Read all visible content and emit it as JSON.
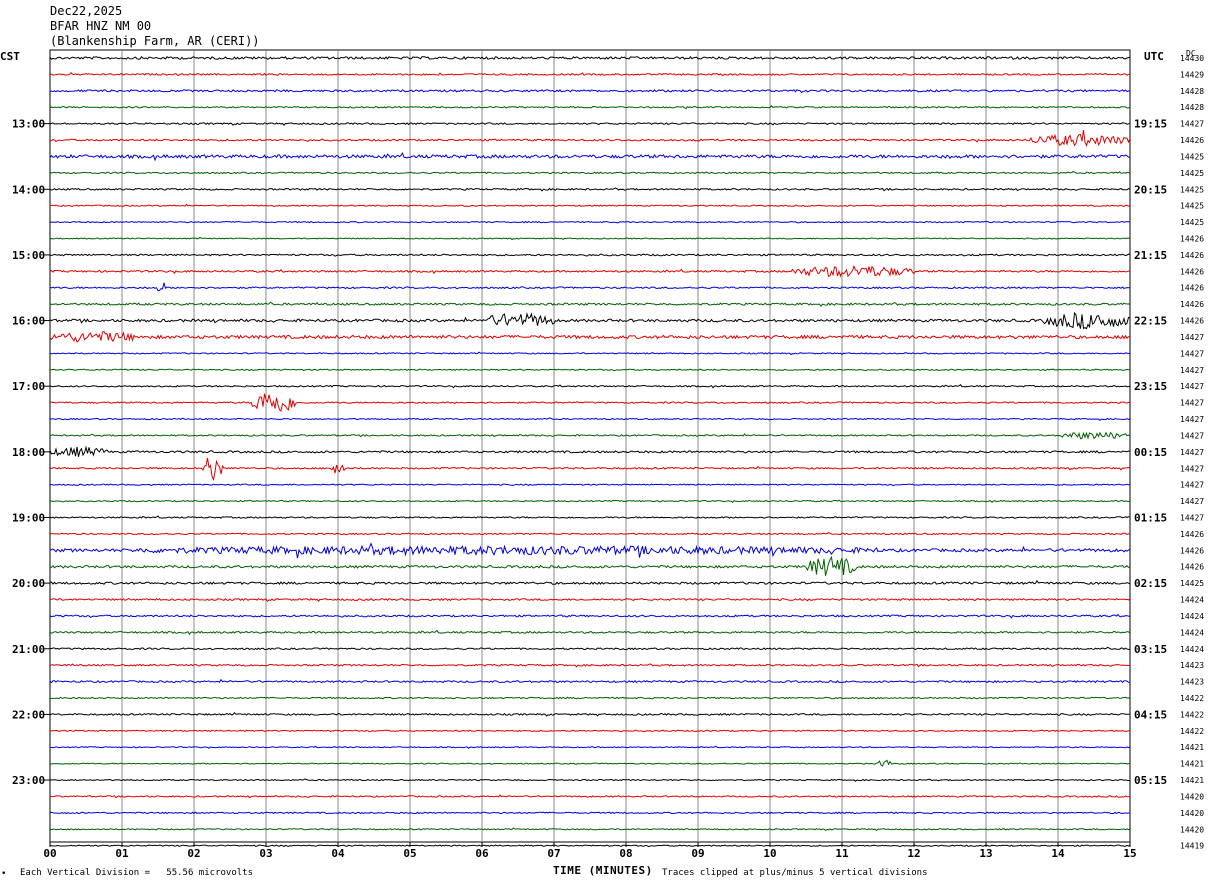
{
  "header": {
    "date": "Dec22,2025",
    "station": "BFAR HNZ NM 00",
    "location": "(Blankenship Farm, AR (CERI))"
  },
  "corners": {
    "left_tz": "CST",
    "right_tz": "UTC",
    "dc_label": "DC"
  },
  "footer": {
    "scale_text": "Each Vertical Division =   55.56 microvolts",
    "clip_text": "Traces clipped at plus/minus 5 vertical divisions",
    "corner_mark": "•"
  },
  "colors": {
    "cycle": [
      "#000000",
      "#e00000",
      "#0000e0",
      "#006000"
    ],
    "grid": "#888888"
  },
  "chart_data": {
    "type": "seismogram",
    "xlabel": "TIME (MINUTES)",
    "x_ticks": [
      "00",
      "01",
      "02",
      "03",
      "04",
      "05",
      "06",
      "07",
      "08",
      "09",
      "10",
      "11",
      "12",
      "13",
      "14",
      "15"
    ],
    "xlim": [
      0,
      15
    ],
    "minutes_per_trace": 15,
    "left_hour_labels": [
      {
        "row": 4,
        "label": "13:00"
      },
      {
        "row": 8,
        "label": "14:00"
      },
      {
        "row": 12,
        "label": "15:00"
      },
      {
        "row": 16,
        "label": "16:00"
      },
      {
        "row": 20,
        "label": "17:00"
      },
      {
        "row": 24,
        "label": "18:00"
      },
      {
        "row": 28,
        "label": "19:00"
      },
      {
        "row": 32,
        "label": "20:00"
      },
      {
        "row": 36,
        "label": "21:00"
      },
      {
        "row": 40,
        "label": "22:00"
      },
      {
        "row": 44,
        "label": "23:00"
      }
    ],
    "right_hour_labels": [
      {
        "row": 4,
        "label": "19:15"
      },
      {
        "row": 8,
        "label": "20:15"
      },
      {
        "row": 12,
        "label": "21:15"
      },
      {
        "row": 16,
        "label": "22:15"
      },
      {
        "row": 20,
        "label": "23:15"
      },
      {
        "row": 24,
        "label": "00:15"
      },
      {
        "row": 28,
        "label": "01:15"
      },
      {
        "row": 32,
        "label": "02:15"
      },
      {
        "row": 36,
        "label": "03:15"
      },
      {
        "row": 40,
        "label": "04:15"
      },
      {
        "row": 44,
        "label": "05:15"
      }
    ],
    "dc_offsets": [
      14430,
      14429,
      14428,
      14428,
      14427,
      14426,
      14425,
      14425,
      14425,
      14425,
      14425,
      14426,
      14426,
      14426,
      14426,
      14426,
      14426,
      14427,
      14427,
      14427,
      14427,
      14427,
      14427,
      14427,
      14427,
      14427,
      14427,
      14427,
      14427,
      14426,
      14426,
      14426,
      14425,
      14424,
      14424,
      14424,
      14424,
      14423,
      14423,
      14422,
      14422,
      14422,
      14421,
      14421,
      14421,
      14420,
      14420,
      14420,
      14419
    ],
    "trace_count": 49,
    "noise_levels": [
      1.2,
      0.8,
      1.0,
      0.7,
      0.8,
      0.9,
      1.6,
      0.7,
      0.8,
      0.6,
      0.6,
      0.5,
      0.8,
      0.9,
      0.8,
      1.0,
      1.3,
      1.6,
      0.6,
      0.6,
      0.7,
      0.7,
      0.6,
      0.7,
      1.0,
      0.8,
      0.6,
      0.6,
      0.7,
      0.7,
      1.5,
      1.2,
      1.1,
      0.9,
      0.9,
      0.9,
      0.8,
      0.8,
      0.9,
      0.7,
      0.8,
      0.6,
      0.5,
      0.5,
      0.6,
      0.7,
      0.7,
      0.6,
      0.6
    ],
    "events": [
      {
        "row": 5,
        "start": 13.6,
        "end": 15.0,
        "amp": 5
      },
      {
        "row": 13,
        "start": 10.3,
        "end": 12.0,
        "amp": 5
      },
      {
        "row": 14,
        "start": 1.5,
        "end": 1.6,
        "amp": 7
      },
      {
        "row": 16,
        "start": 6.0,
        "end": 7.0,
        "amp": 6
      },
      {
        "row": 16,
        "start": 13.8,
        "end": 15.0,
        "amp": 7
      },
      {
        "row": 17,
        "start": 0.0,
        "end": 1.2,
        "amp": 4
      },
      {
        "row": 21,
        "start": 2.8,
        "end": 3.4,
        "amp": 12
      },
      {
        "row": 23,
        "start": 14.0,
        "end": 15.0,
        "amp": 3
      },
      {
        "row": 24,
        "start": 0.0,
        "end": 0.8,
        "amp": 4
      },
      {
        "row": 25,
        "start": 2.1,
        "end": 2.4,
        "amp": 12
      },
      {
        "row": 25,
        "start": 3.9,
        "end": 4.1,
        "amp": 8
      },
      {
        "row": 30,
        "start": 1.2,
        "end": 11.5,
        "amp": 3
      },
      {
        "row": 31,
        "start": 10.5,
        "end": 11.2,
        "amp": 9
      },
      {
        "row": 43,
        "start": 11.5,
        "end": 11.7,
        "amp": 4
      }
    ]
  }
}
